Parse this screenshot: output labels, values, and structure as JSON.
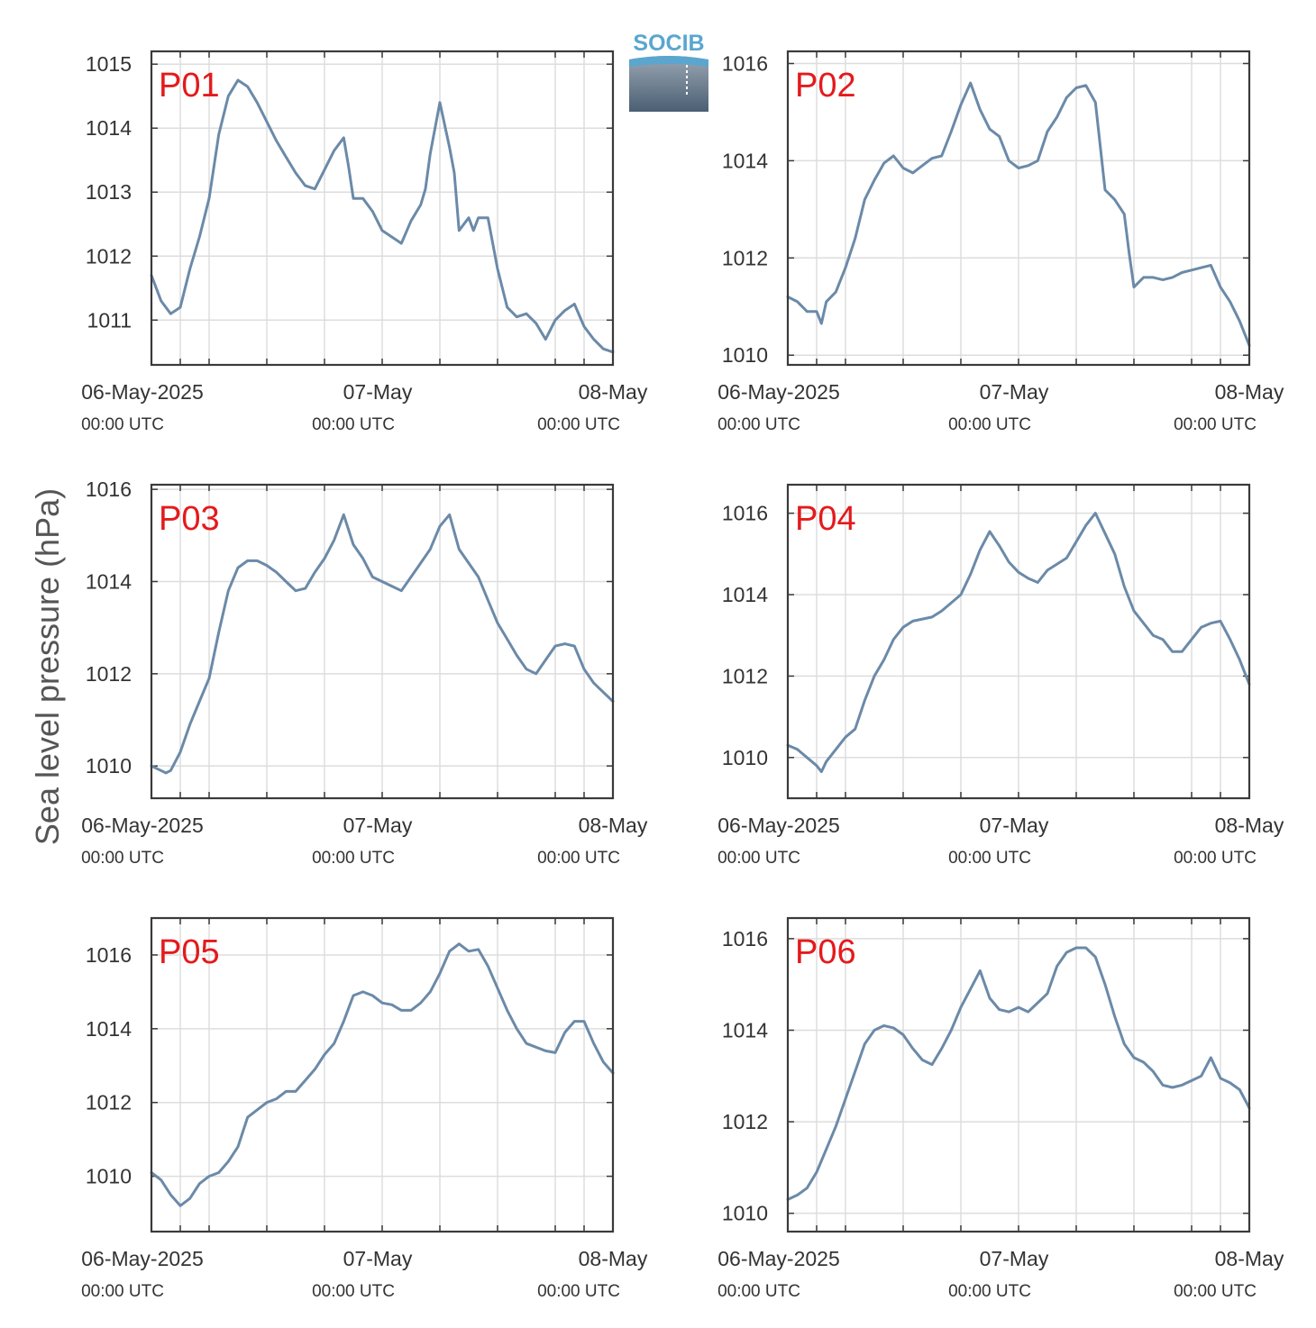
{
  "logo": {
    "text": "SOCIB"
  },
  "ylabel": "Sea level pressure (hPa)",
  "x_tick_labels": [
    {
      "main": "06-May-2025",
      "sub": "00:00 UTC"
    },
    {
      "main": "07-May",
      "sub": "00:00 UTC"
    },
    {
      "main": "08-May",
      "sub": "00:00 UTC"
    }
  ],
  "colors": {
    "series": "#6b8aa8",
    "label": "#e41a1c",
    "axis": "#3a3a3a",
    "grid": "#dddddd"
  },
  "chart_data": [
    {
      "type": "line",
      "title": "P01",
      "xlabel": "",
      "ylabel": "Sea level pressure (hPa)",
      "x_range_hours": [
        0,
        48
      ],
      "ylim": [
        1010.3,
        1015.2
      ],
      "yticks": [
        1011,
        1012,
        1013,
        1014,
        1015
      ],
      "grid": true,
      "series": [
        {
          "x": [
            0,
            1,
            2,
            3,
            4,
            5,
            6,
            7,
            8,
            9,
            10,
            11,
            12,
            13,
            14,
            15,
            16,
            17,
            18,
            19,
            20,
            20.5,
            21,
            22,
            23,
            24,
            25,
            26,
            27,
            28,
            28.5,
            29,
            30,
            31,
            31.5,
            32,
            33,
            33.5,
            34,
            35,
            36,
            37,
            38,
            39,
            40,
            41,
            42,
            43,
            44,
            45,
            46,
            47,
            48
          ],
          "y": [
            1011.7,
            1011.3,
            1011.1,
            1011.2,
            1011.8,
            1012.3,
            1012.9,
            1013.9,
            1014.5,
            1014.75,
            1014.65,
            1014.4,
            1014.1,
            1013.8,
            1013.55,
            1013.3,
            1013.1,
            1013.05,
            1013.35,
            1013.65,
            1013.85,
            1013.4,
            1012.9,
            1012.9,
            1012.7,
            1012.4,
            1012.3,
            1012.2,
            1012.55,
            1012.8,
            1013.05,
            1013.6,
            1014.4,
            1013.7,
            1013.3,
            1012.4,
            1012.6,
            1012.4,
            1012.6,
            1012.6,
            1011.8,
            1011.2,
            1011.05,
            1011.1,
            1010.95,
            1010.7,
            1011.0,
            1011.15,
            1011.25,
            1010.9,
            1010.7,
            1010.55,
            1010.5
          ]
        }
      ]
    },
    {
      "type": "line",
      "title": "P02",
      "xlabel": "",
      "ylabel": "Sea level pressure (hPa)",
      "x_range_hours": [
        0,
        48
      ],
      "ylim": [
        1009.8,
        1016.25
      ],
      "yticks": [
        1010,
        1012,
        1014,
        1016
      ],
      "grid": true,
      "series": [
        {
          "x": [
            0,
            1,
            2,
            3,
            3.5,
            4,
            5,
            6,
            7,
            8,
            9,
            10,
            11,
            12,
            13,
            14,
            15,
            16,
            17,
            18,
            19,
            20,
            21,
            22,
            23,
            24,
            25,
            26,
            27,
            28,
            29,
            30,
            31,
            32,
            33,
            34,
            35,
            35.5,
            36,
            37,
            38,
            39,
            40,
            41,
            42,
            43,
            44,
            45,
            46,
            47,
            48
          ],
          "y": [
            1011.2,
            1011.1,
            1010.9,
            1010.9,
            1010.65,
            1011.1,
            1011.3,
            1011.8,
            1012.4,
            1013.2,
            1013.6,
            1013.95,
            1014.1,
            1013.85,
            1013.75,
            1013.9,
            1014.05,
            1014.1,
            1014.6,
            1015.15,
            1015.6,
            1015.05,
            1014.65,
            1014.5,
            1014.0,
            1013.85,
            1013.9,
            1014.0,
            1014.6,
            1014.9,
            1015.3,
            1015.5,
            1015.55,
            1015.2,
            1013.4,
            1013.2,
            1012.9,
            1012.1,
            1011.4,
            1011.6,
            1011.6,
            1011.55,
            1011.6,
            1011.7,
            1011.75,
            1011.8,
            1011.85,
            1011.4,
            1011.1,
            1010.7,
            1010.2
          ]
        }
      ]
    },
    {
      "type": "line",
      "title": "P03",
      "xlabel": "",
      "ylabel": "Sea level pressure (hPa)",
      "x_range_hours": [
        0,
        48
      ],
      "ylim": [
        1009.3,
        1016.1
      ],
      "yticks": [
        1010,
        1012,
        1014,
        1016
      ],
      "grid": true,
      "series": [
        {
          "x": [
            0,
            1,
            1.5,
            2,
            3,
            4,
            5,
            6,
            7,
            8,
            9,
            10,
            11,
            12,
            13,
            14,
            15,
            16,
            17,
            18,
            19,
            20,
            21,
            22,
            23,
            24,
            25,
            26,
            27,
            28,
            29,
            30,
            31,
            32,
            33,
            34,
            35,
            36,
            37,
            38,
            39,
            40,
            41,
            42,
            43,
            44,
            45,
            46,
            47,
            48
          ],
          "y": [
            1010.0,
            1009.9,
            1009.85,
            1009.9,
            1010.3,
            1010.9,
            1011.4,
            1011.9,
            1012.9,
            1013.8,
            1014.3,
            1014.45,
            1014.45,
            1014.35,
            1014.2,
            1014.0,
            1013.8,
            1013.85,
            1014.2,
            1014.5,
            1014.9,
            1015.45,
            1014.8,
            1014.5,
            1014.1,
            1014.0,
            1013.9,
            1013.8,
            1014.1,
            1014.4,
            1014.7,
            1015.2,
            1015.45,
            1014.7,
            1014.4,
            1014.1,
            1013.6,
            1013.1,
            1012.75,
            1012.4,
            1012.1,
            1012.0,
            1012.3,
            1012.6,
            1012.65,
            1012.6,
            1012.1,
            1011.8,
            1011.6,
            1011.4
          ]
        }
      ]
    },
    {
      "type": "line",
      "title": "P04",
      "xlabel": "",
      "ylabel": "Sea level pressure (hPa)",
      "x_range_hours": [
        0,
        48
      ],
      "ylim": [
        1009.0,
        1016.7
      ],
      "yticks": [
        1010,
        1012,
        1014,
        1016
      ],
      "grid": true,
      "series": [
        {
          "x": [
            0,
            1,
            2,
            3,
            3.5,
            4,
            5,
            6,
            7,
            8,
            9,
            10,
            11,
            12,
            13,
            14,
            15,
            16,
            17,
            18,
            19,
            20,
            21,
            22,
            23,
            24,
            25,
            26,
            27,
            28,
            29,
            30,
            31,
            32,
            33,
            34,
            35,
            36,
            37,
            38,
            39,
            40,
            41,
            42,
            43,
            44,
            45,
            46,
            47,
            48
          ],
          "y": [
            1010.3,
            1010.2,
            1010.0,
            1009.8,
            1009.65,
            1009.9,
            1010.2,
            1010.5,
            1010.7,
            1011.4,
            1012.0,
            1012.4,
            1012.9,
            1013.2,
            1013.35,
            1013.4,
            1013.45,
            1013.6,
            1013.8,
            1014.0,
            1014.5,
            1015.1,
            1015.55,
            1015.2,
            1014.8,
            1014.55,
            1014.4,
            1014.3,
            1014.6,
            1014.75,
            1014.9,
            1015.3,
            1015.7,
            1016.0,
            1015.5,
            1015.0,
            1014.2,
            1013.6,
            1013.3,
            1013.0,
            1012.9,
            1012.6,
            1012.6,
            1012.9,
            1013.2,
            1013.3,
            1013.35,
            1012.9,
            1012.4,
            1011.8
          ]
        }
      ]
    },
    {
      "type": "line",
      "title": "P05",
      "xlabel": "",
      "ylabel": "Sea level pressure (hPa)",
      "x_range_hours": [
        0,
        48
      ],
      "ylim": [
        1008.5,
        1017.0
      ],
      "yticks": [
        1010,
        1012,
        1014,
        1016
      ],
      "grid": true,
      "series": [
        {
          "x": [
            0,
            1,
            2,
            3,
            4,
            5,
            6,
            7,
            8,
            9,
            10,
            11,
            12,
            13,
            14,
            15,
            16,
            17,
            18,
            19,
            20,
            21,
            22,
            23,
            24,
            25,
            26,
            27,
            28,
            29,
            30,
            31,
            32,
            33,
            34,
            35,
            36,
            37,
            38,
            39,
            40,
            41,
            42,
            43,
            44,
            45,
            46,
            47,
            48
          ],
          "y": [
            1010.1,
            1009.9,
            1009.5,
            1009.2,
            1009.4,
            1009.8,
            1010.0,
            1010.1,
            1010.4,
            1010.8,
            1011.6,
            1011.8,
            1012.0,
            1012.1,
            1012.3,
            1012.3,
            1012.6,
            1012.9,
            1013.3,
            1013.6,
            1014.2,
            1014.9,
            1015.0,
            1014.9,
            1014.7,
            1014.65,
            1014.5,
            1014.5,
            1014.7,
            1015.0,
            1015.5,
            1016.1,
            1016.3,
            1016.1,
            1016.15,
            1015.7,
            1015.1,
            1014.5,
            1014.0,
            1013.6,
            1013.5,
            1013.4,
            1013.35,
            1013.9,
            1014.2,
            1014.2,
            1013.6,
            1013.1,
            1012.8
          ]
        }
      ]
    },
    {
      "type": "line",
      "title": "P06",
      "xlabel": "",
      "ylabel": "Sea level pressure (hPa)",
      "x_range_hours": [
        0,
        48
      ],
      "ylim": [
        1009.6,
        1016.45
      ],
      "yticks": [
        1010,
        1012,
        1014,
        1016
      ],
      "grid": true,
      "series": [
        {
          "x": [
            0,
            1,
            2,
            3,
            4,
            5,
            6,
            7,
            8,
            9,
            10,
            11,
            12,
            13,
            14,
            15,
            16,
            17,
            18,
            19,
            20,
            21,
            22,
            23,
            24,
            25,
            26,
            27,
            28,
            29,
            30,
            31,
            32,
            33,
            34,
            35,
            36,
            37,
            38,
            39,
            40,
            41,
            42,
            43,
            44,
            45,
            46,
            47,
            48
          ],
          "y": [
            1010.3,
            1010.4,
            1010.55,
            1010.9,
            1011.4,
            1011.9,
            1012.5,
            1013.1,
            1013.7,
            1014.0,
            1014.1,
            1014.05,
            1013.9,
            1013.6,
            1013.35,
            1013.25,
            1013.6,
            1014.0,
            1014.5,
            1014.9,
            1015.3,
            1014.7,
            1014.45,
            1014.4,
            1014.5,
            1014.4,
            1014.6,
            1014.8,
            1015.4,
            1015.7,
            1015.8,
            1015.8,
            1015.6,
            1015.0,
            1014.3,
            1013.7,
            1013.4,
            1013.3,
            1013.1,
            1012.8,
            1012.75,
            1012.8,
            1012.9,
            1013.0,
            1013.4,
            1012.95,
            1012.85,
            1012.7,
            1012.3
          ]
        }
      ]
    }
  ]
}
